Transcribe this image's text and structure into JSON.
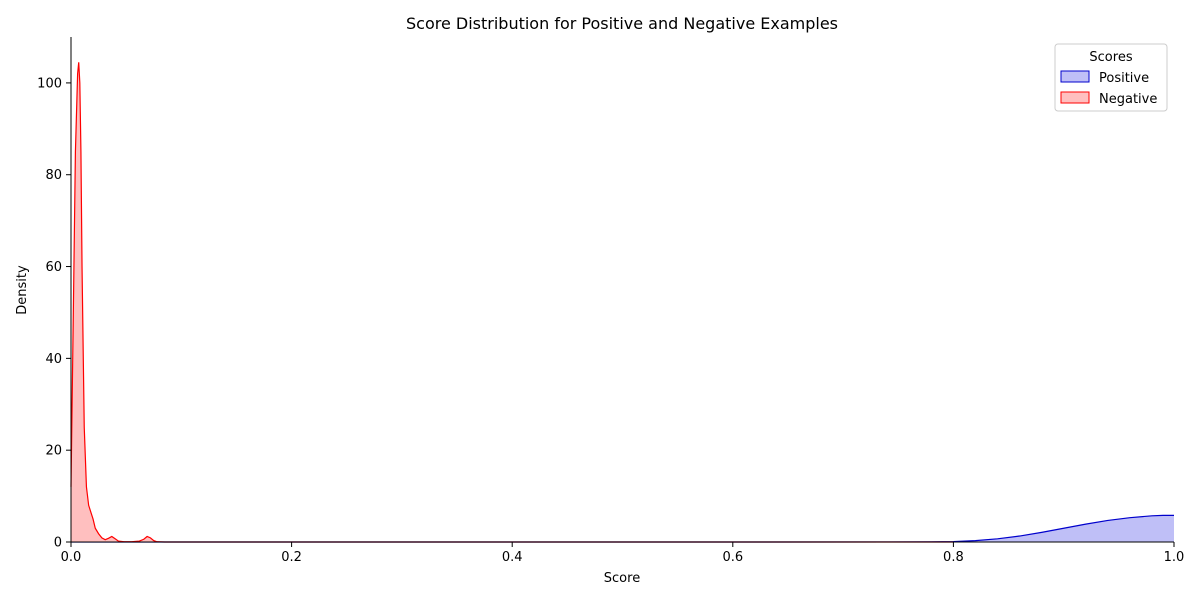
{
  "chart_data": {
    "type": "area",
    "title": "Score Distribution for Positive and Negative Examples",
    "xlabel": "Score",
    "ylabel": "Density",
    "xlim": [
      0.0,
      1.0
    ],
    "ylim": [
      0,
      110
    ],
    "xticks": [
      "0.0",
      "0.2",
      "0.4",
      "0.6",
      "0.8",
      "1.0"
    ],
    "xtick_values": [
      0.0,
      0.2,
      0.4,
      0.6,
      0.8,
      1.0
    ],
    "yticks": [
      "0",
      "20",
      "40",
      "60",
      "80",
      "100"
    ],
    "ytick_values": [
      0,
      20,
      40,
      60,
      80,
      100
    ],
    "grid": false,
    "legend": {
      "title": "Scores",
      "placement": "top-right",
      "entries": [
        "Positive",
        "Negative"
      ]
    },
    "series": [
      {
        "name": "Positive",
        "color": "#0000cc",
        "fill": "#bfbff7",
        "x": [
          0.0,
          0.6,
          0.78,
          0.8,
          0.82,
          0.84,
          0.86,
          0.88,
          0.9,
          0.92,
          0.94,
          0.96,
          0.98,
          0.99,
          1.0
        ],
        "y": [
          0,
          0,
          0.02,
          0.1,
          0.3,
          0.7,
          1.3,
          2.1,
          3.0,
          3.9,
          4.7,
          5.3,
          5.7,
          5.8,
          5.8
        ]
      },
      {
        "name": "Negative",
        "color": "#ff0000",
        "fill": "#ffbfbf",
        "x": [
          0.0,
          0.002,
          0.004,
          0.006,
          0.007,
          0.008,
          0.009,
          0.01,
          0.012,
          0.014,
          0.016,
          0.018,
          0.02,
          0.022,
          0.025,
          0.028,
          0.031,
          0.034,
          0.037,
          0.04,
          0.043,
          0.048,
          0.055,
          0.062,
          0.066,
          0.069,
          0.072,
          0.075,
          0.078,
          0.085,
          0.1,
          0.2,
          0.4,
          0.6,
          0.8
        ],
        "y": [
          12,
          48,
          85,
          102,
          104.5,
          100,
          85,
          60,
          25,
          12,
          8,
          6.5,
          5,
          3,
          1.8,
          0.9,
          0.5,
          0.8,
          1.2,
          0.7,
          0.2,
          0.05,
          0.05,
          0.2,
          0.6,
          1.2,
          0.9,
          0.3,
          0.05,
          0,
          0,
          0,
          0,
          0,
          0
        ]
      }
    ]
  }
}
